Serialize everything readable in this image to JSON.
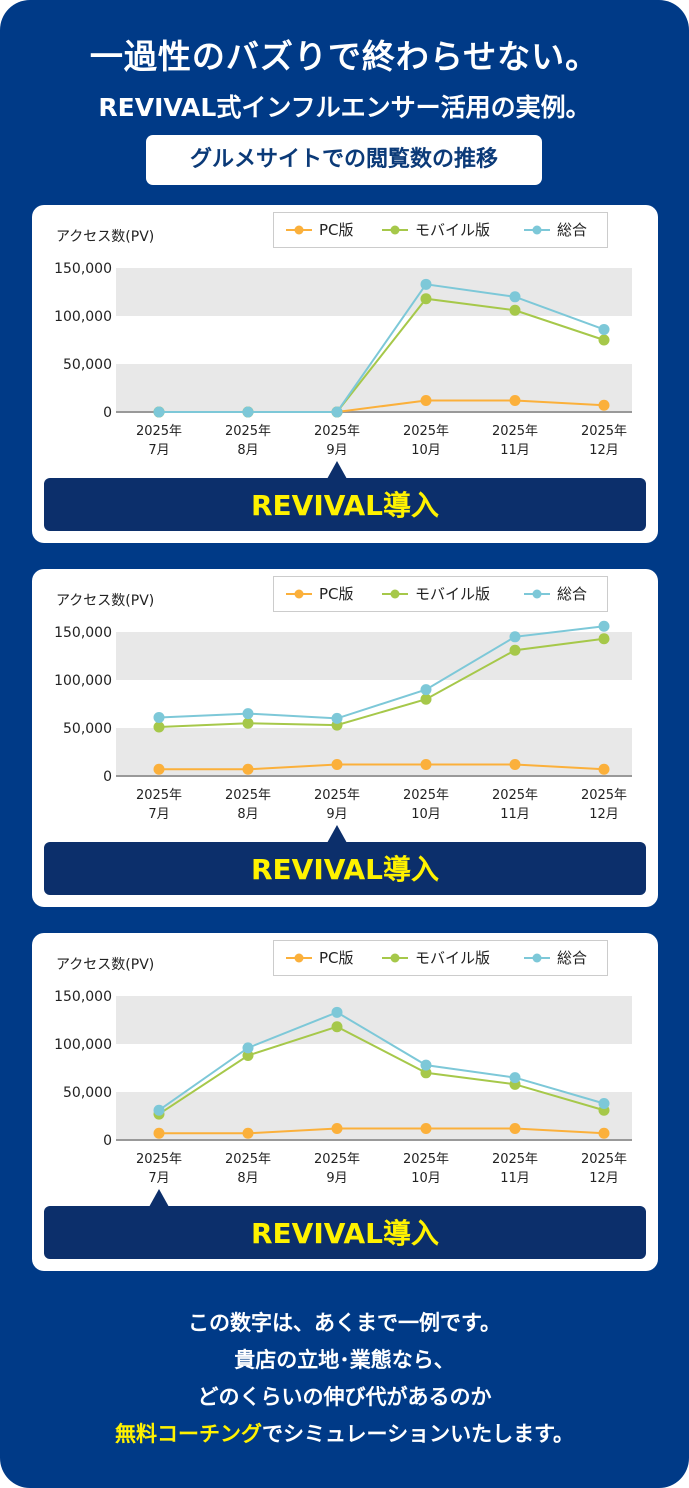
{
  "header": {
    "title": "一過性のバズりで終わらせない。",
    "subtitle": "REVIVAL式インフルエンサー活用の実例。",
    "section_label": "グルメサイトでの閲覧数の推移"
  },
  "colors": {
    "background": "#003a87",
    "pc": "#fbb03b",
    "mobile": "#a6c84a",
    "total": "#7dc8d8",
    "banner": "#0c2f6b",
    "banner_text": "#fff200"
  },
  "chart_data": [
    {
      "type": "line",
      "ylabel": "アクセス数(PV)",
      "ylim": [
        0,
        150000
      ],
      "yticks": [
        "0",
        "50,000",
        "100,000",
        "150,000"
      ],
      "categories": [
        [
          "2025年",
          "7月"
        ],
        [
          "2025年",
          "8月"
        ],
        [
          "2025年",
          "9月"
        ],
        [
          "2025年",
          "10月"
        ],
        [
          "2025年",
          "11月"
        ],
        [
          "2025年",
          "12月"
        ]
      ],
      "legend": "top-right",
      "banner": "REVIVAL導入",
      "marker_index": 2,
      "series": [
        {
          "name": "PC版",
          "values": [
            0,
            0,
            0,
            12000,
            12000,
            7000
          ]
        },
        {
          "name": "モバイル版",
          "values": [
            0,
            0,
            0,
            118000,
            106000,
            75000
          ]
        },
        {
          "name": "総合",
          "values": [
            0,
            0,
            0,
            133000,
            120000,
            86000
          ]
        }
      ]
    },
    {
      "type": "line",
      "ylabel": "アクセス数(PV)",
      "ylim": [
        0,
        150000
      ],
      "yticks": [
        "0",
        "50,000",
        "100,000",
        "150,000"
      ],
      "categories": [
        [
          "2025年",
          "7月"
        ],
        [
          "2025年",
          "8月"
        ],
        [
          "2025年",
          "9月"
        ],
        [
          "2025年",
          "10月"
        ],
        [
          "2025年",
          "11月"
        ],
        [
          "2025年",
          "12月"
        ]
      ],
      "legend": "top-right",
      "banner": "REVIVAL導入",
      "marker_index": 2,
      "series": [
        {
          "name": "PC版",
          "values": [
            7000,
            7000,
            12000,
            12000,
            12000,
            7000
          ]
        },
        {
          "name": "モバイル版",
          "values": [
            51000,
            55000,
            53000,
            80000,
            131000,
            143000
          ]
        },
        {
          "name": "総合",
          "values": [
            61000,
            65000,
            60000,
            90000,
            145000,
            156000
          ]
        }
      ]
    },
    {
      "type": "line",
      "ylabel": "アクセス数(PV)",
      "ylim": [
        0,
        150000
      ],
      "yticks": [
        "0",
        "50,000",
        "100,000",
        "150,000"
      ],
      "categories": [
        [
          "2025年",
          "7月"
        ],
        [
          "2025年",
          "8月"
        ],
        [
          "2025年",
          "9月"
        ],
        [
          "2025年",
          "10月"
        ],
        [
          "2025年",
          "11月"
        ],
        [
          "2025年",
          "12月"
        ]
      ],
      "legend": "top-right",
      "banner": "REVIVAL導入",
      "marker_index": 0,
      "series": [
        {
          "name": "PC版",
          "values": [
            7000,
            7000,
            12000,
            12000,
            12000,
            7000
          ]
        },
        {
          "name": "モバイル版",
          "values": [
            27000,
            88000,
            118000,
            70000,
            58000,
            31000
          ]
        },
        {
          "name": "総合",
          "values": [
            31000,
            96000,
            133000,
            78000,
            65000,
            38000
          ]
        }
      ]
    }
  ],
  "footer": {
    "line1": "この数字は、あくまで一例です。",
    "line2": "貴店の立地･業態なら、",
    "line3": "どのくらいの伸び代があるのか",
    "highlight": "無料コーチング",
    "line4_rest": "でシミュレーションいたします。"
  }
}
